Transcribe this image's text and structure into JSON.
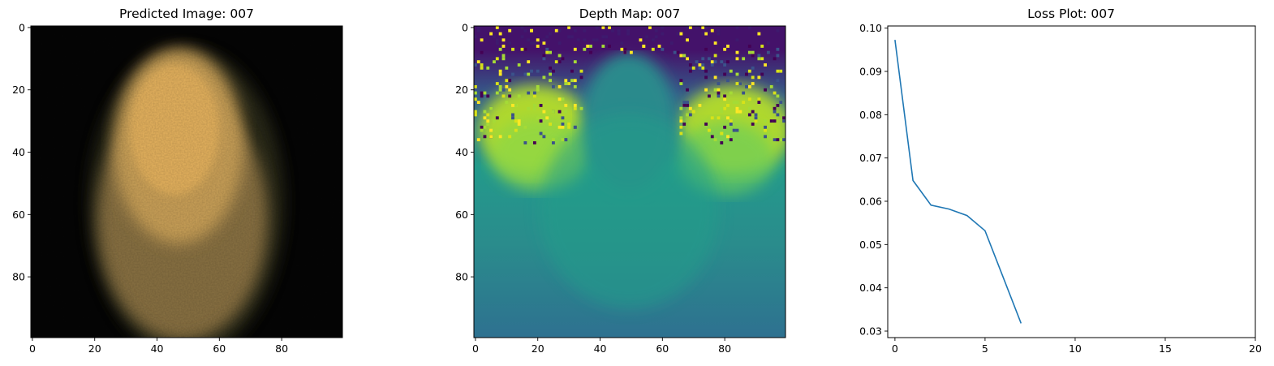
{
  "chart_data": [
    {
      "type": "heatmap",
      "title": "Predicted Image: 007",
      "description_colormap": "rgb",
      "xlim": [
        -0.5,
        99.5
      ],
      "ylim": [
        99.5,
        -0.5
      ],
      "xticks": [
        0,
        20,
        40,
        60,
        80
      ],
      "yticks": [
        0,
        20,
        40,
        60,
        80
      ],
      "xlabel": "",
      "ylabel": ""
    },
    {
      "type": "heatmap",
      "title": "Depth Map: 007",
      "colormap": "viridis",
      "xlim": [
        -0.5,
        99.5
      ],
      "ylim": [
        99.5,
        -0.5
      ],
      "xticks": [
        0,
        20,
        40,
        60,
        80
      ],
      "yticks": [
        0,
        20,
        40,
        60,
        80
      ],
      "xlabel": "",
      "ylabel": ""
    },
    {
      "type": "line",
      "title": "Loss Plot: 007",
      "x": [
        0,
        1,
        2,
        3,
        4,
        5,
        6,
        7
      ],
      "series": [
        {
          "values": [
            0.0973,
            0.0648,
            0.0591,
            0.0582,
            0.0567,
            0.0532,
            0.0425,
            0.0318
          ],
          "color": "#1f77b4"
        }
      ],
      "xlim": [
        -0.4,
        20
      ],
      "ylim": [
        0.0285,
        0.1005
      ],
      "xticks": [
        0,
        5,
        10,
        15,
        20
      ],
      "yticks": [
        0.03,
        0.04,
        0.05,
        0.06,
        0.07,
        0.08,
        0.09,
        0.1
      ],
      "ytick_labels": [
        "0.03",
        "0.04",
        "0.05",
        "0.06",
        "0.07",
        "0.08",
        "0.09",
        "0.10"
      ],
      "grid": false,
      "xlabel": "",
      "ylabel": ""
    }
  ]
}
